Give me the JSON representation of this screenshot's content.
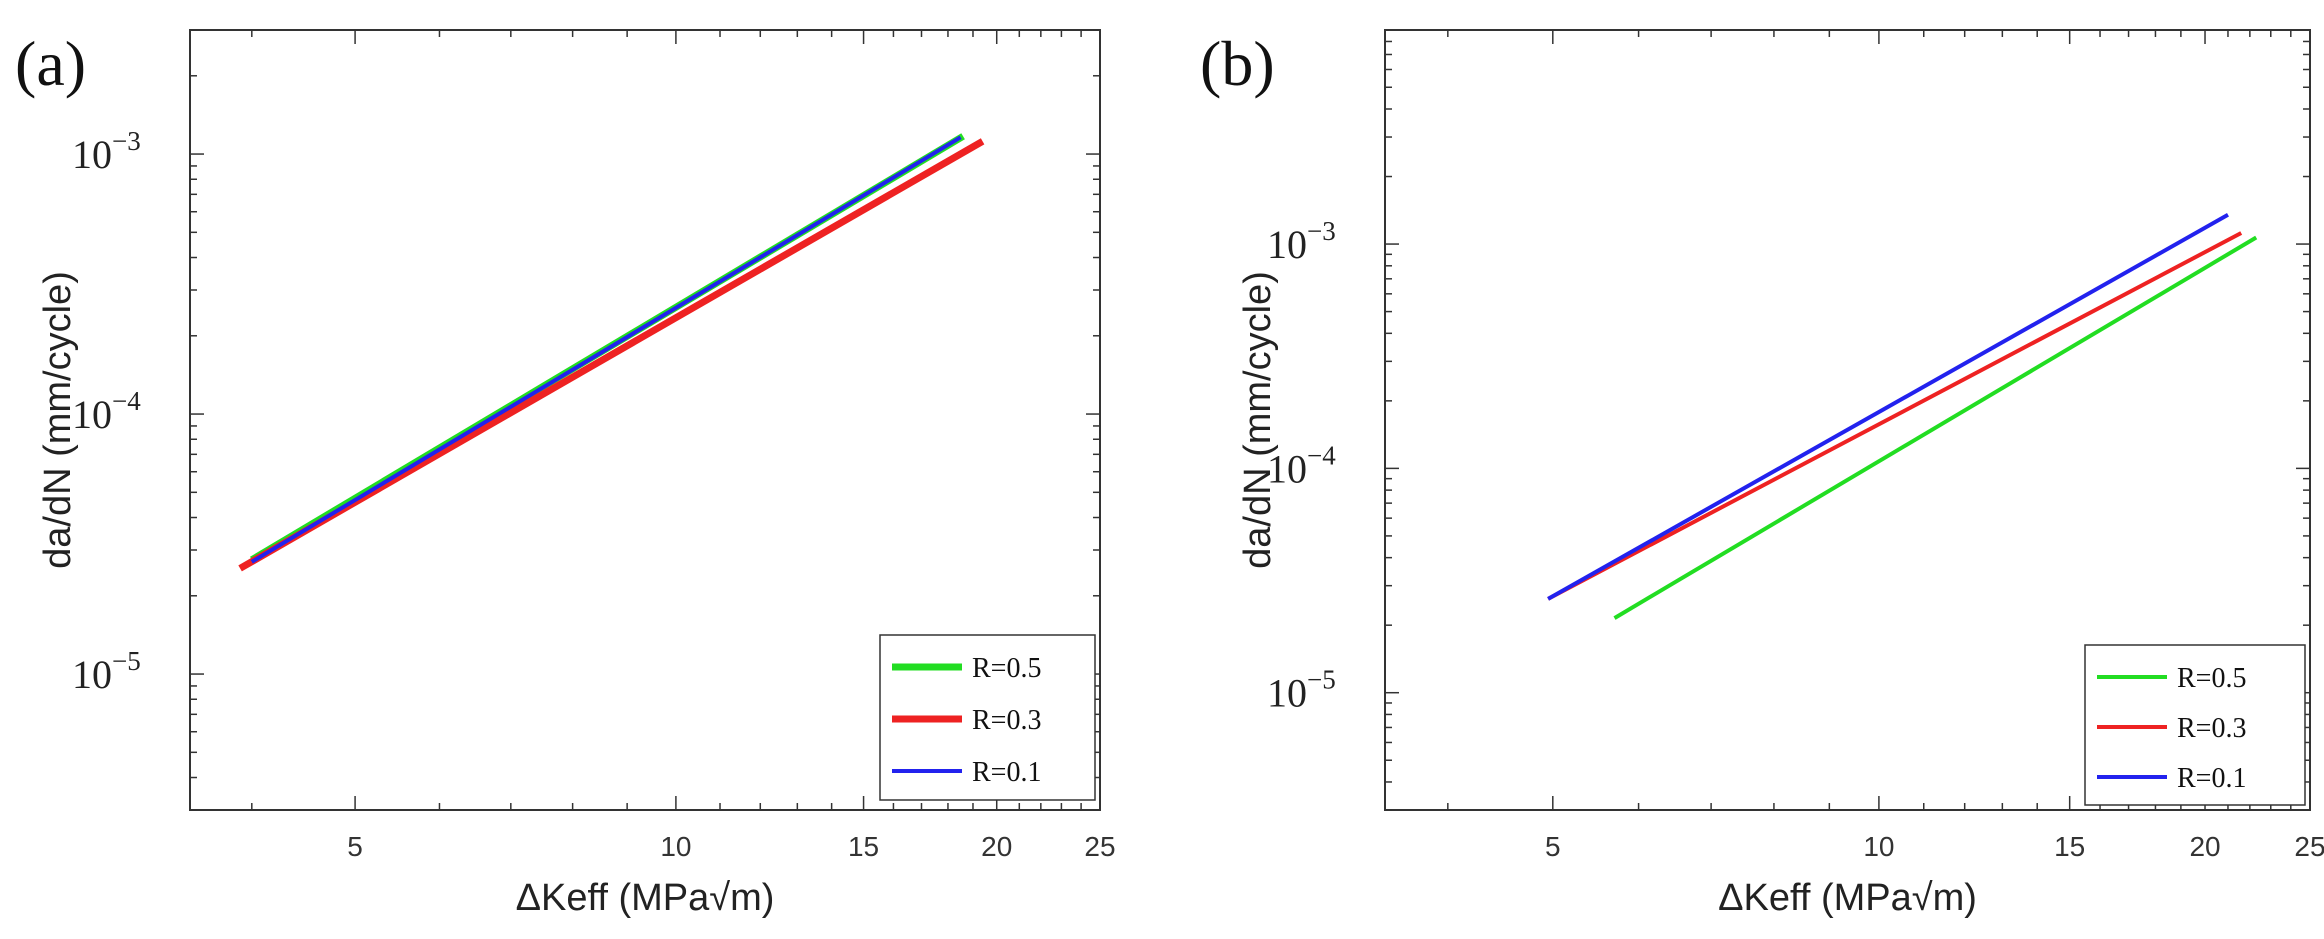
{
  "chart_data": [
    {
      "panel": "(a)",
      "type": "line",
      "xscale": "log",
      "yscale": "log",
      "xlabel": "ΔKeff (MPa√m)",
      "ylabel": "da/dN (mm/cycle)",
      "xlim": [
        3.5,
        25
      ],
      "ylim": [
        3e-06,
        0.003
      ],
      "xticks": [
        5,
        10,
        15,
        20,
        25
      ],
      "yticks": [
        {
          "value": 1e-05,
          "base": "10",
          "exp": "−5"
        },
        {
          "value": 0.0001,
          "base": "10",
          "exp": "−4"
        },
        {
          "value": 0.001,
          "base": "10",
          "exp": "−3"
        }
      ],
      "legend_position": "bottom-right",
      "series": [
        {
          "name": "R=0.5",
          "color": "#22dd22",
          "x": [
            4.0,
            18.6
          ],
          "y": [
            2.75e-05,
            0.00117
          ]
        },
        {
          "name": "R=0.3",
          "color": "#ee2222",
          "x": [
            3.9,
            19.4
          ],
          "y": [
            2.55e-05,
            0.00112
          ]
        },
        {
          "name": "R=0.1",
          "color": "#2222ee",
          "x": [
            4.0,
            18.5
          ],
          "y": [
            2.7e-05,
            0.00116
          ]
        }
      ]
    },
    {
      "panel": "(b)",
      "type": "line",
      "xscale": "log",
      "yscale": "log",
      "xlabel": "ΔKeff (MPa√m)",
      "ylabel": "da/dN (mm/cycle)",
      "xlim": [
        3.5,
        25
      ],
      "ylim": [
        3e-06,
        0.009
      ],
      "xticks": [
        5,
        10,
        15,
        20,
        25
      ],
      "yticks": [
        {
          "value": 1e-05,
          "base": "10",
          "exp": "−5"
        },
        {
          "value": 0.0001,
          "base": "10",
          "exp": "−4"
        },
        {
          "value": 0.001,
          "base": "10",
          "exp": "−3"
        }
      ],
      "legend_position": "bottom-right",
      "series": [
        {
          "name": "R=0.5",
          "color": "#22dd22",
          "x": [
            5.7,
            22.3
          ],
          "y": [
            2.15e-05,
            0.00107
          ]
        },
        {
          "name": "R=0.3",
          "color": "#ee2222",
          "x": [
            4.95,
            21.6
          ],
          "y": [
            2.62e-05,
            0.00112
          ]
        },
        {
          "name": "R=0.1",
          "color": "#2222ee",
          "x": [
            4.95,
            21.0
          ],
          "y": [
            2.62e-05,
            0.00135
          ]
        }
      ]
    }
  ]
}
